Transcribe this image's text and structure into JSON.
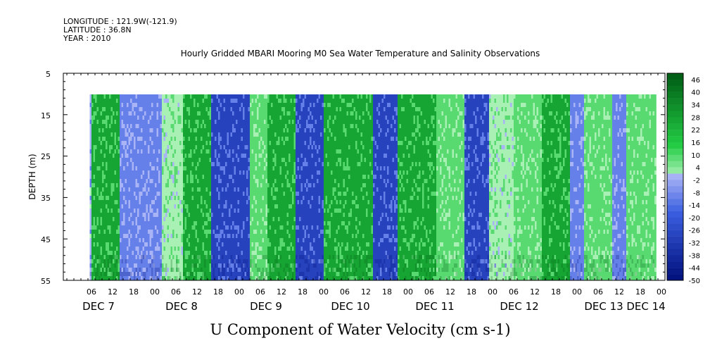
{
  "header": {
    "longitude": "LONGITUDE : 121.9W(-121.9)",
    "latitude": "LATITUDE : 36.8N",
    "year": "YEAR : 2010"
  },
  "chart_data": {
    "type": "heatmap",
    "title": "Hourly Gridded MBARI Mooring M0 Sea Water Temperature and Salinity Observations",
    "xlabel": "U Component of Water Velocity (cm s-1)",
    "ylabel": "DEPTH (m)",
    "y_ticks": [
      "5",
      "15",
      "25",
      "35",
      "45",
      "55"
    ],
    "ylim": [
      55,
      5
    ],
    "hour_ticks": [
      "06",
      "12",
      "18",
      "00",
      "06",
      "12",
      "18",
      "00",
      "06",
      "12",
      "18",
      "00",
      "06",
      "12",
      "18",
      "00",
      "06",
      "12",
      "18",
      "00",
      "06",
      "12",
      "18",
      "00",
      "06",
      "12",
      "18",
      "00",
      "06",
      "12",
      "18",
      "00"
    ],
    "day_labels": [
      "DEC  7",
      "DEC  8",
      "DEC  9",
      "DEC 10",
      "DEC 11",
      "DEC 12",
      "DEC 13",
      "DEC 14"
    ],
    "data_depth_range": [
      10,
      55
    ],
    "colorbar": {
      "labels": [
        "46",
        "40",
        "34",
        "28",
        "22",
        "16",
        "10",
        "4",
        "-2",
        "-8",
        "-14",
        "-20",
        "-26",
        "-32",
        "-38",
        "-44",
        "-50"
      ],
      "range": [
        -50,
        49
      ],
      "step": 3,
      "colors": {
        "strong_negative": "#000f7a",
        "mid_negative": "#3a5ee0",
        "weak_negative": "#a9b4f6",
        "weak_positive": "#a9f0b4",
        "mid_positive": "#22cc44",
        "strong_positive": "#005a14"
      }
    },
    "time_bands": [
      {
        "start": "Dec 7 10:00",
        "sign": "negative",
        "magnitude": "weak"
      },
      {
        "start": "Dec 7 12:00",
        "sign": "positive",
        "magnitude": "strong"
      },
      {
        "start": "Dec 7 20:00",
        "sign": "negative",
        "magnitude": "moderate"
      },
      {
        "start": "Dec 8 08:00",
        "sign": "positive",
        "magnitude": "weak"
      },
      {
        "start": "Dec 8 14:00",
        "sign": "positive",
        "magnitude": "strong"
      },
      {
        "start": "Dec 8 22:00",
        "sign": "negative",
        "magnitude": "strong"
      },
      {
        "start": "Dec 9 09:00",
        "sign": "positive",
        "magnitude": "moderate"
      },
      {
        "start": "Dec 9 14:00",
        "sign": "positive",
        "magnitude": "strong"
      },
      {
        "start": "Dec 9 22:00",
        "sign": "negative",
        "magnitude": "strong"
      },
      {
        "start": "Dec 10 06:00",
        "sign": "positive",
        "magnitude": "strong"
      },
      {
        "start": "Dec 10 20:00",
        "sign": "negative",
        "magnitude": "strong"
      },
      {
        "start": "Dec 11 03:00",
        "sign": "positive",
        "magnitude": "strong"
      },
      {
        "start": "Dec 11 14:00",
        "sign": "positive",
        "magnitude": "moderate"
      },
      {
        "start": "Dec 11 22:00",
        "sign": "negative",
        "magnitude": "strong"
      },
      {
        "start": "Dec 12 05:00",
        "sign": "positive",
        "magnitude": "weak"
      },
      {
        "start": "Dec 12 12:00",
        "sign": "positive",
        "magnitude": "moderate"
      },
      {
        "start": "Dec 12 20:00",
        "sign": "positive",
        "magnitude": "strong"
      },
      {
        "start": "Dec 13 04:00",
        "sign": "negative",
        "magnitude": "moderate"
      },
      {
        "start": "Dec 13 08:00",
        "sign": "positive",
        "magnitude": "moderate"
      },
      {
        "start": "Dec 13 16:00",
        "sign": "negative",
        "magnitude": "moderate"
      },
      {
        "start": "Dec 13 20:00",
        "sign": "positive",
        "magnitude": "moderate"
      }
    ]
  }
}
